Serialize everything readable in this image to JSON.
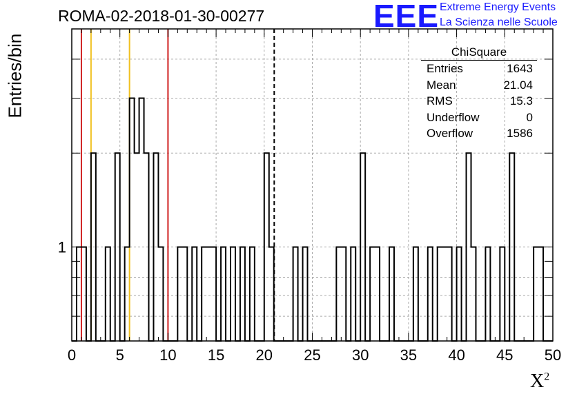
{
  "title": "ROMA-02-2018-01-30-00277",
  "logo": {
    "text": "EEE",
    "line1": "Extreme Energy Events",
    "line2": "La Scienza nelle Scuole"
  },
  "axis": {
    "ylabel": "Entries/bin",
    "xlabel": "X",
    "xlabel_sup": "2"
  },
  "stats": {
    "name": "ChiSquare",
    "rows": [
      {
        "label": "Entries",
        "value": "1643"
      },
      {
        "label": "Mean",
        "value": "21.04"
      },
      {
        "label": "RMS",
        "value": "15.3"
      },
      {
        "label": "Underflow",
        "value": "0"
      },
      {
        "label": "Overflow",
        "value": "1586"
      }
    ]
  },
  "colors": {
    "red_line": "#d02020",
    "yellow_line": "#f0c020",
    "histogram": "#000000",
    "logo": "#1a1aff"
  },
  "chart_data": {
    "type": "bar",
    "style": "step-histogram",
    "log_y": true,
    "xlim": [
      0,
      50
    ],
    "ylim": [
      0.5,
      5
    ],
    "bin_width": 0.5,
    "x_ticks": [
      0,
      5,
      10,
      15,
      20,
      25,
      30,
      35,
      40,
      45,
      50
    ],
    "y_tick_labels": [
      {
        "value": 1,
        "label": "1"
      }
    ],
    "grid": true,
    "vlines": [
      {
        "x": 1,
        "color": "red"
      },
      {
        "x": 2,
        "color": "yellow"
      },
      {
        "x": 6,
        "color": "yellow"
      },
      {
        "x": 10,
        "color": "red"
      },
      {
        "x": 21.04,
        "color": "black",
        "style": "dashed"
      }
    ],
    "bins": [
      [
        0.5,
        1
      ],
      [
        1,
        1
      ],
      [
        2,
        2
      ],
      [
        3.5,
        1
      ],
      [
        4.5,
        2
      ],
      [
        5.5,
        1
      ],
      [
        6,
        3
      ],
      [
        6.5,
        2
      ],
      [
        7,
        3
      ],
      [
        7.5,
        2
      ],
      [
        8.5,
        2
      ],
      [
        9,
        1
      ],
      [
        11,
        1
      ],
      [
        11.5,
        1
      ],
      [
        12.5,
        1
      ],
      [
        13.5,
        1
      ],
      [
        14,
        1
      ],
      [
        14.5,
        1
      ],
      [
        15.5,
        1
      ],
      [
        16.5,
        1
      ],
      [
        17.5,
        1
      ],
      [
        18.5,
        1
      ],
      [
        20,
        2
      ],
      [
        20.5,
        1
      ],
      [
        23,
        1
      ],
      [
        24,
        1
      ],
      [
        27.5,
        1
      ],
      [
        28,
        1
      ],
      [
        29,
        1
      ],
      [
        30,
        2
      ],
      [
        31,
        1
      ],
      [
        31.5,
        1
      ],
      [
        33,
        1
      ],
      [
        35.5,
        1
      ],
      [
        37,
        1
      ],
      [
        38,
        1
      ],
      [
        38.5,
        1
      ],
      [
        39,
        1
      ],
      [
        40,
        1
      ],
      [
        41,
        2
      ],
      [
        41.5,
        1
      ],
      [
        43,
        1
      ],
      [
        44.5,
        1
      ],
      [
        45.5,
        2
      ],
      [
        48,
        1
      ],
      [
        48.5,
        1
      ]
    ]
  }
}
